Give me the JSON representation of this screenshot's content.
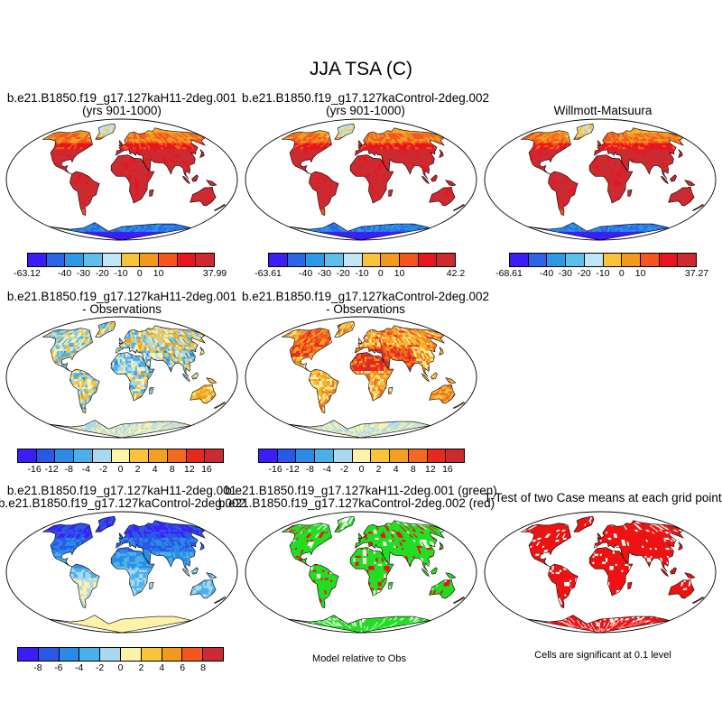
{
  "figure": {
    "title": "JJA TSA (C)",
    "panel_titles": {
      "p1_line1": "b.e21.B1850.f19_g17.127kaH11-2deg.001",
      "p1_line2": "(yrs 901-1000)",
      "p2_line1": "b.e21.B1850.f19_g17.127kaControl-2deg.002",
      "p2_line2": "(yrs 901-1000)",
      "p3_line1": "Willmott-Matsuura",
      "p4_line1": "b.e21.B1850.f19_g17.127kaH11-2deg.001",
      "p4_line2": "- Observations",
      "p5_line1": "b.e21.B1850.f19_g17.127kaControl-2deg.002",
      "p5_line2": "- Observations",
      "p7_line1": "b.e21.B1850.f19_g17.127kaH11-2deg.001",
      "p7_line2": "b.e21.B1850.f19_g17.127kaControl-2deg.002",
      "p8_line1": "b.e21.B1850.f19_g17.127kaH11-2deg.001 (green)",
      "p8_line2": "b.e21.B1850.f19_g17.127kaControl-2deg.002 (red)",
      "p9_line1": "T-Test of two Case means at each grid point"
    },
    "captions": {
      "p8": "Model relative to Obs",
      "p9": "Cells are significant at 0.1 level"
    },
    "colorbars": {
      "abs_1": [
        "-63.12",
        "-40",
        "-30",
        "-20",
        "-10",
        "0",
        "10",
        "37.99"
      ],
      "abs_2": [
        "-63.61",
        "-40",
        "-30",
        "-20",
        "-10",
        "0",
        "10",
        "42.2"
      ],
      "abs_3": [
        "-68.61",
        "-40",
        "-30",
        "-20",
        "-10",
        "0",
        "10",
        "37.27"
      ],
      "diff": [
        "-16",
        "-12",
        "-8",
        "-4",
        "-2",
        "0",
        "2",
        "4",
        "8",
        "12",
        "16"
      ],
      "diff2": [
        "-8",
        "-6",
        "-4",
        "-2",
        "0",
        "2",
        "4",
        "6",
        "8"
      ]
    },
    "colors": {
      "abs": [
        "#3a1ef5",
        "#2a66e8",
        "#2a9ae6",
        "#5ec0ea",
        "#bfe6f5",
        "#f7c43a",
        "#f39a1e",
        "#f5561e",
        "#e8141e",
        "#cc2a30"
      ],
      "diff": [
        "#3a1ef5",
        "#2a58e6",
        "#2a8ae6",
        "#4ab0ea",
        "#a9d8f0",
        "#fdf2a8",
        "#f7c43a",
        "#f3a01e",
        "#f36a1e",
        "#e8281e",
        "#cc2a30"
      ],
      "diff2": [
        "#3a1ef5",
        "#2a58e6",
        "#2a8ae6",
        "#4ab0ea",
        "#a9d8f0",
        "#fdf2a8",
        "#f7c43a",
        "#f39a1e",
        "#f5561e",
        "#cc2a30"
      ],
      "green": "#22dd22",
      "red": "#ee1111"
    }
  },
  "chart_data": [
    {
      "type": "heatmap",
      "title": "b.e21.B1850.f19_g17.127kaH11-2deg.001 (yrs 901-1000)",
      "variable": "JJA TSA (C)",
      "range": [
        -63.12,
        37.99
      ],
      "levels": [
        -40,
        -30,
        -20,
        -10,
        0,
        10
      ]
    },
    {
      "type": "heatmap",
      "title": "b.e21.B1850.f19_g17.127kaControl-2deg.002 (yrs 901-1000)",
      "variable": "JJA TSA (C)",
      "range": [
        -63.61,
        42.2
      ],
      "levels": [
        -40,
        -30,
        -20,
        -10,
        0,
        10
      ]
    },
    {
      "type": "heatmap",
      "title": "Willmott-Matsuura",
      "variable": "JJA TSA (C)",
      "range": [
        -68.61,
        37.27
      ],
      "levels": [
        -40,
        -30,
        -20,
        -10,
        0,
        10
      ]
    },
    {
      "type": "heatmap",
      "title": "b.e21.B1850.f19_g17.127kaH11-2deg.001 - Observations",
      "levels": [
        -16,
        -12,
        -8,
        -4,
        -2,
        0,
        2,
        4,
        8,
        12,
        16
      ]
    },
    {
      "type": "heatmap",
      "title": "b.e21.B1850.f19_g17.127kaControl-2deg.002 - Observations",
      "levels": [
        -16,
        -12,
        -8,
        -4,
        -2,
        0,
        2,
        4,
        8,
        12,
        16
      ]
    },
    {
      "type": "heatmap",
      "title": "b.e21.B1850.f19_g17.127kaH11-2deg.001 - b.e21.B1850.f19_g17.127kaControl-2deg.002",
      "levels": [
        -8,
        -6,
        -4,
        -2,
        0,
        2,
        4,
        6,
        8
      ]
    },
    {
      "type": "heatmap",
      "title": "Model relative to Obs",
      "legend": [
        "b.e21.B1850.f19_g17.127kaH11-2deg.001 (green)",
        "b.e21.B1850.f19_g17.127kaControl-2deg.002 (red)"
      ]
    },
    {
      "type": "heatmap",
      "title": "T-Test of two Case means at each grid point",
      "note": "Cells are significant at 0.1 level"
    }
  ]
}
